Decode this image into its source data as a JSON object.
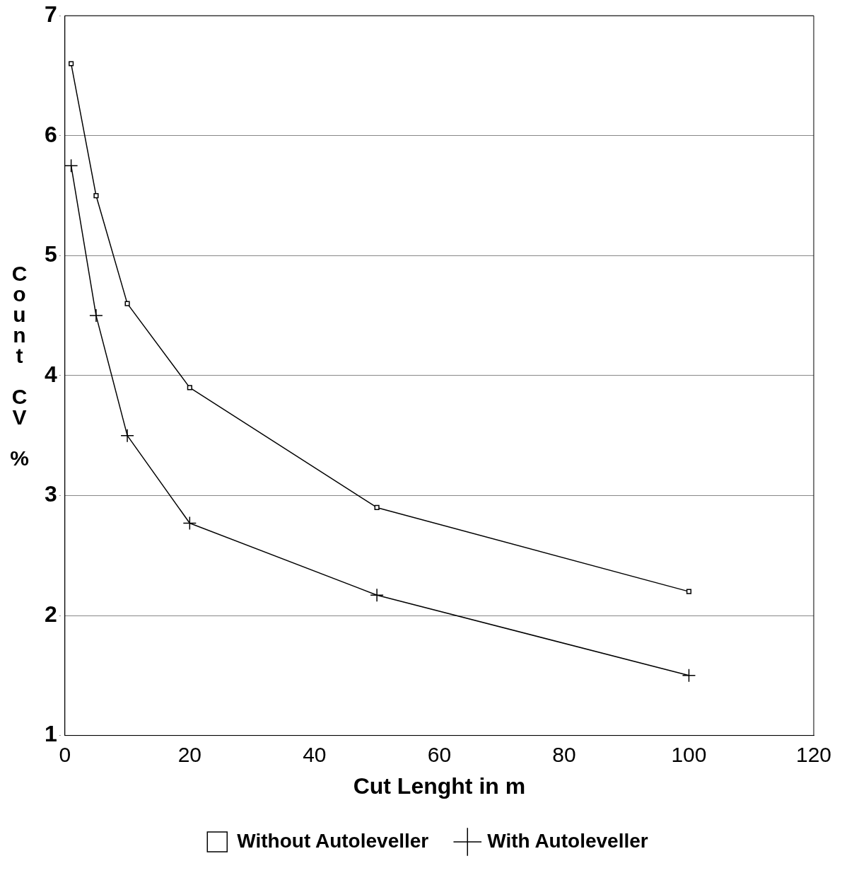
{
  "chart_data": {
    "type": "line",
    "xlabel": "Cut Lenght in m",
    "ylabel": "Count CV %",
    "xlim": [
      0,
      120
    ],
    "xticks": [
      0,
      20,
      40,
      60,
      80,
      100,
      120
    ],
    "ylim": [
      1,
      7
    ],
    "yticks": [
      1,
      2,
      3,
      4,
      5,
      6,
      7
    ],
    "grid": "y",
    "legend": "bottom",
    "line_style": "solid",
    "series": [
      {
        "name": "Without Autoleveller",
        "color": "#000000",
        "marker": "square",
        "x": [
          1,
          5,
          10,
          20,
          50,
          100
        ],
        "values": [
          6.6,
          5.5,
          4.6,
          3.9,
          2.9,
          2.2
        ]
      },
      {
        "name": "With Autoleveller",
        "color": "#000000",
        "marker": "cross",
        "x": [
          1,
          5,
          10,
          20,
          50,
          100
        ],
        "values": [
          5.75,
          4.5,
          3.5,
          2.77,
          2.17,
          1.5
        ]
      }
    ]
  }
}
